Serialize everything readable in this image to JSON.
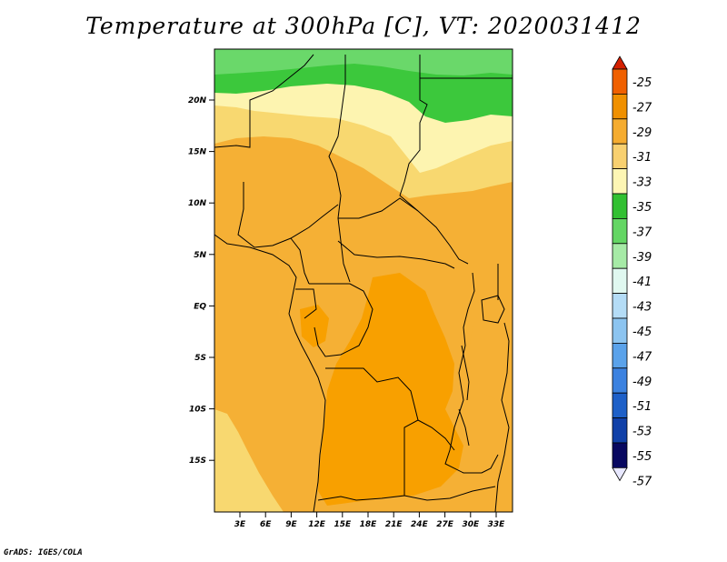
{
  "title": "Temperature at 300hPa [C], VT: 2020031412",
  "credit": "GrADS: IGES/COLA",
  "map": {
    "lat_labels": [
      "20N",
      "15N",
      "10N",
      "5N",
      "EQ",
      "5S",
      "10S",
      "15S"
    ],
    "lon_labels": [
      "3E",
      "6E",
      "9E",
      "12E",
      "15E",
      "18E",
      "21E",
      "24E",
      "27E",
      "30E",
      "33E"
    ],
    "colors": {
      "c25_27": "#f07800",
      "c27_29": "#f8a000",
      "c29_31": "#f5b035",
      "c31_33": "#f8d870",
      "c33_35": "#fdf4b0",
      "c35_37": "#3cc83c",
      "c37_39": "#6ad86a"
    }
  },
  "colorbar": {
    "labels": [
      "-25",
      "-27",
      "-29",
      "-31",
      "-33",
      "-35",
      "-37",
      "-39",
      "-41",
      "-43",
      "-45",
      "-47",
      "-49",
      "-51",
      "-53",
      "-55",
      "-57"
    ],
    "colors": [
      "#d42000",
      "#f06000",
      "#f09000",
      "#f5ac30",
      "#f8d070",
      "#fdf6b4",
      "#32c032",
      "#64d664",
      "#a6eaa6",
      "#e0f8f0",
      "#b4dcf6",
      "#8cc4f0",
      "#5aa2ea",
      "#3c82e0",
      "#1e60c8",
      "#1040a8",
      "#080860",
      "#e8e8ff"
    ]
  }
}
